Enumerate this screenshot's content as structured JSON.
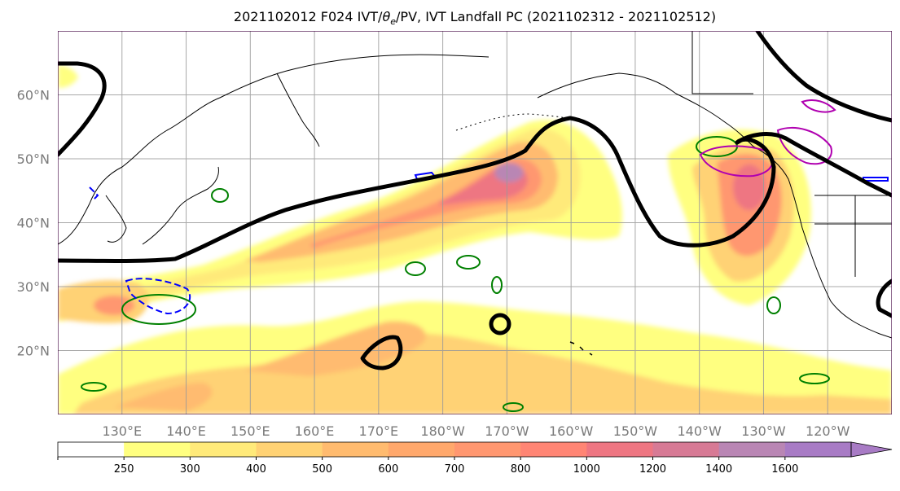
{
  "chart_data": {
    "type": "heatmap",
    "title": "2021102012 F024 IVT/θe/PV, IVT Landfall PC (2021102312 - 2021102512)",
    "title_parts": {
      "prefix": "2021102012 F024 IVT/",
      "theta": "θ",
      "theta_sub": "e",
      "suffix": "/PV, IVT Landfall PC (2021102312 - 2021102512)"
    },
    "projection": "North Pacific lat-lon map",
    "lat_range": [
      10,
      70
    ],
    "lon_range": [
      120,
      250
    ],
    "grid": true,
    "lat_ticks": [
      {
        "value": 60,
        "label": "60°N"
      },
      {
        "value": 50,
        "label": "50°N"
      },
      {
        "value": 40,
        "label": "40°N"
      },
      {
        "value": 30,
        "label": "30°N"
      },
      {
        "value": 20,
        "label": "20°N"
      }
    ],
    "lon_ticks": [
      {
        "value": 130,
        "label": "130°E"
      },
      {
        "value": 140,
        "label": "140°E"
      },
      {
        "value": 150,
        "label": "150°E"
      },
      {
        "value": 160,
        "label": "160°E"
      },
      {
        "value": 170,
        "label": "170°E"
      },
      {
        "value": 180,
        "label": "180°W"
      },
      {
        "value": 190,
        "label": "170°W"
      },
      {
        "value": 200,
        "label": "160°W"
      },
      {
        "value": 210,
        "label": "150°W"
      },
      {
        "value": 220,
        "label": "140°W"
      },
      {
        "value": 230,
        "label": "130°W"
      },
      {
        "value": 240,
        "label": "120°W"
      }
    ],
    "colorbar": {
      "levels": [
        250,
        300,
        400,
        500,
        600,
        700,
        800,
        1000,
        1200,
        1400,
        1600
      ],
      "labels": [
        "250",
        "300",
        "400",
        "500",
        "600",
        "700",
        "800",
        "1000",
        "1200",
        "1400",
        "1600"
      ],
      "colors": [
        "#ffffff",
        "#ffff80",
        "#ffea7a",
        "#ffd274",
        "#ffbb6f",
        "#ffa86c",
        "#ff9770",
        "#ff8574",
        "#ee7682",
        "#d77a95",
        "#b986b4",
        "#a87bc5"
      ],
      "extend": "max"
    },
    "ivt_regions": [
      {
        "lat": 44,
        "lon": 165,
        "value": 700
      },
      {
        "lat": 48,
        "lon": 188,
        "value": 1400
      },
      {
        "lat": 46,
        "lon": 232,
        "value": 900
      },
      {
        "lat": 27,
        "lon": 130,
        "value": 900
      }
    ],
    "colors": {
      "theta_e_contour": "#000000",
      "pv_positive": "#008000",
      "pv_negative": "#0000ff",
      "landfall_pc": "#b000b0",
      "coastline": "#000000",
      "grid": "#999999"
    }
  }
}
